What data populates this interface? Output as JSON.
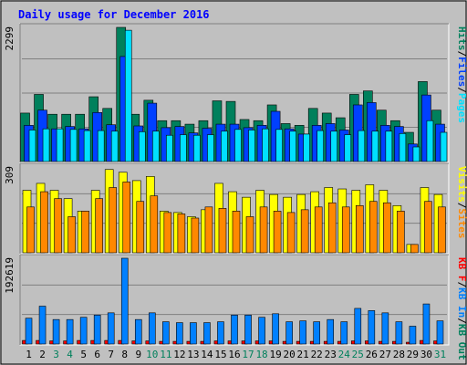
{
  "chart_data": [
    {
      "type": "bar",
      "title": "Daily usage for December 2016",
      "y_max_label": "2299",
      "ylim": [
        0,
        2299
      ],
      "grid": true,
      "legend": [
        "Hits",
        "Files",
        "Pages"
      ],
      "legend_separator": "/",
      "colors": {
        "Hits": "#00805c",
        "Files": "#0040ff",
        "Pages": "#00e0ff"
      },
      "series": [
        {
          "name": "Hits",
          "values": [
            830,
            1150,
            810,
            810,
            810,
            1110,
            910,
            2299,
            810,
            1050,
            700,
            700,
            640,
            700,
            1040,
            1030,
            720,
            700,
            970,
            650,
            620,
            910,
            830,
            750,
            1150,
            1210,
            880,
            700,
            500,
            1370,
            880
          ]
        },
        {
          "name": "Files",
          "values": [
            620,
            880,
            560,
            600,
            560,
            840,
            630,
            1800,
            610,
            1000,
            580,
            600,
            490,
            570,
            640,
            640,
            580,
            620,
            860,
            560,
            470,
            620,
            650,
            540,
            970,
            1010,
            620,
            600,
            300,
            1140,
            640
          ]
        },
        {
          "name": "Pages",
          "values": [
            540,
            560,
            560,
            550,
            530,
            530,
            520,
            2250,
            510,
            520,
            450,
            460,
            450,
            460,
            520,
            550,
            540,
            560,
            550,
            520,
            470,
            530,
            520,
            460,
            530,
            520,
            520,
            480,
            250,
            700,
            500
          ]
        }
      ]
    },
    {
      "type": "bar",
      "y_max_label": "309",
      "ylim": [
        0,
        309
      ],
      "grid": true,
      "legend": [
        "Visits",
        "Sites"
      ],
      "legend_separator": "/",
      "colors": {
        "Visits": "#ffff00",
        "Sites": "#ff8800"
      },
      "series": [
        {
          "name": "Visits",
          "values": [
            225,
            250,
            225,
            195,
            150,
            225,
            300,
            290,
            260,
            275,
            150,
            145,
            130,
            155,
            250,
            220,
            200,
            225,
            210,
            200,
            210,
            220,
            235,
            230,
            225,
            245,
            225,
            170,
            30,
            235,
            210
          ]
        },
        {
          "name": "Sites",
          "values": [
            165,
            220,
            195,
            130,
            150,
            195,
            235,
            255,
            185,
            205,
            145,
            140,
            125,
            165,
            160,
            150,
            130,
            165,
            150,
            145,
            155,
            165,
            180,
            165,
            170,
            185,
            180,
            150,
            30,
            185,
            165
          ]
        }
      ]
    },
    {
      "type": "bar",
      "y_max_label": "192619",
      "ylim": [
        0,
        192619
      ],
      "grid": true,
      "legend": [
        "KB F",
        "KB In",
        "KB Out"
      ],
      "legend_separator": "/",
      "colors": {
        "KB F": "#ff0000",
        "KB In": "#0080ff",
        "KB Out": "#00805c"
      },
      "series": [
        {
          "name": "KB F",
          "values": [
            8000,
            8000,
            7000,
            7000,
            8000,
            8000,
            8000,
            8000,
            7000,
            7000,
            6000,
            6000,
            6000,
            6000,
            7000,
            7000,
            7000,
            7000,
            7000,
            6000,
            6000,
            6000,
            6000,
            6000,
            7000,
            7000,
            6000,
            6000,
            4000,
            8000,
            7000
          ]
        },
        {
          "name": "KB In",
          "values": [
            58000,
            85000,
            55000,
            55000,
            60000,
            65000,
            70000,
            192619,
            55000,
            70000,
            50000,
            48000,
            48000,
            48000,
            50000,
            65000,
            65000,
            60000,
            68000,
            50000,
            52000,
            50000,
            55000,
            50000,
            80000,
            75000,
            70000,
            50000,
            40000,
            90000,
            52000
          ]
        },
        {
          "name": "KB Out",
          "values": [
            0,
            0,
            0,
            0,
            0,
            0,
            0,
            0,
            0,
            0,
            0,
            0,
            0,
            0,
            0,
            0,
            0,
            0,
            0,
            0,
            0,
            0,
            0,
            0,
            0,
            0,
            0,
            0,
            0,
            0,
            0
          ]
        }
      ]
    }
  ],
  "x_days": [
    "1",
    "2",
    "3",
    "4",
    "5",
    "6",
    "7",
    "8",
    "9",
    "10",
    "11",
    "12",
    "13",
    "14",
    "15",
    "16",
    "17",
    "18",
    "19",
    "20",
    "21",
    "22",
    "23",
    "24",
    "25",
    "26",
    "27",
    "28",
    "29",
    "30",
    "31"
  ],
  "weekend_days": [
    "3",
    "4",
    "10",
    "11",
    "17",
    "18",
    "24",
    "25",
    "31"
  ],
  "colors": {
    "background": "#c0c0c0",
    "plot": "#c0c0c0",
    "grid": "#808080",
    "title": "#0000ff",
    "weekday_label": "#000000",
    "weekend_label": "#00805c"
  }
}
